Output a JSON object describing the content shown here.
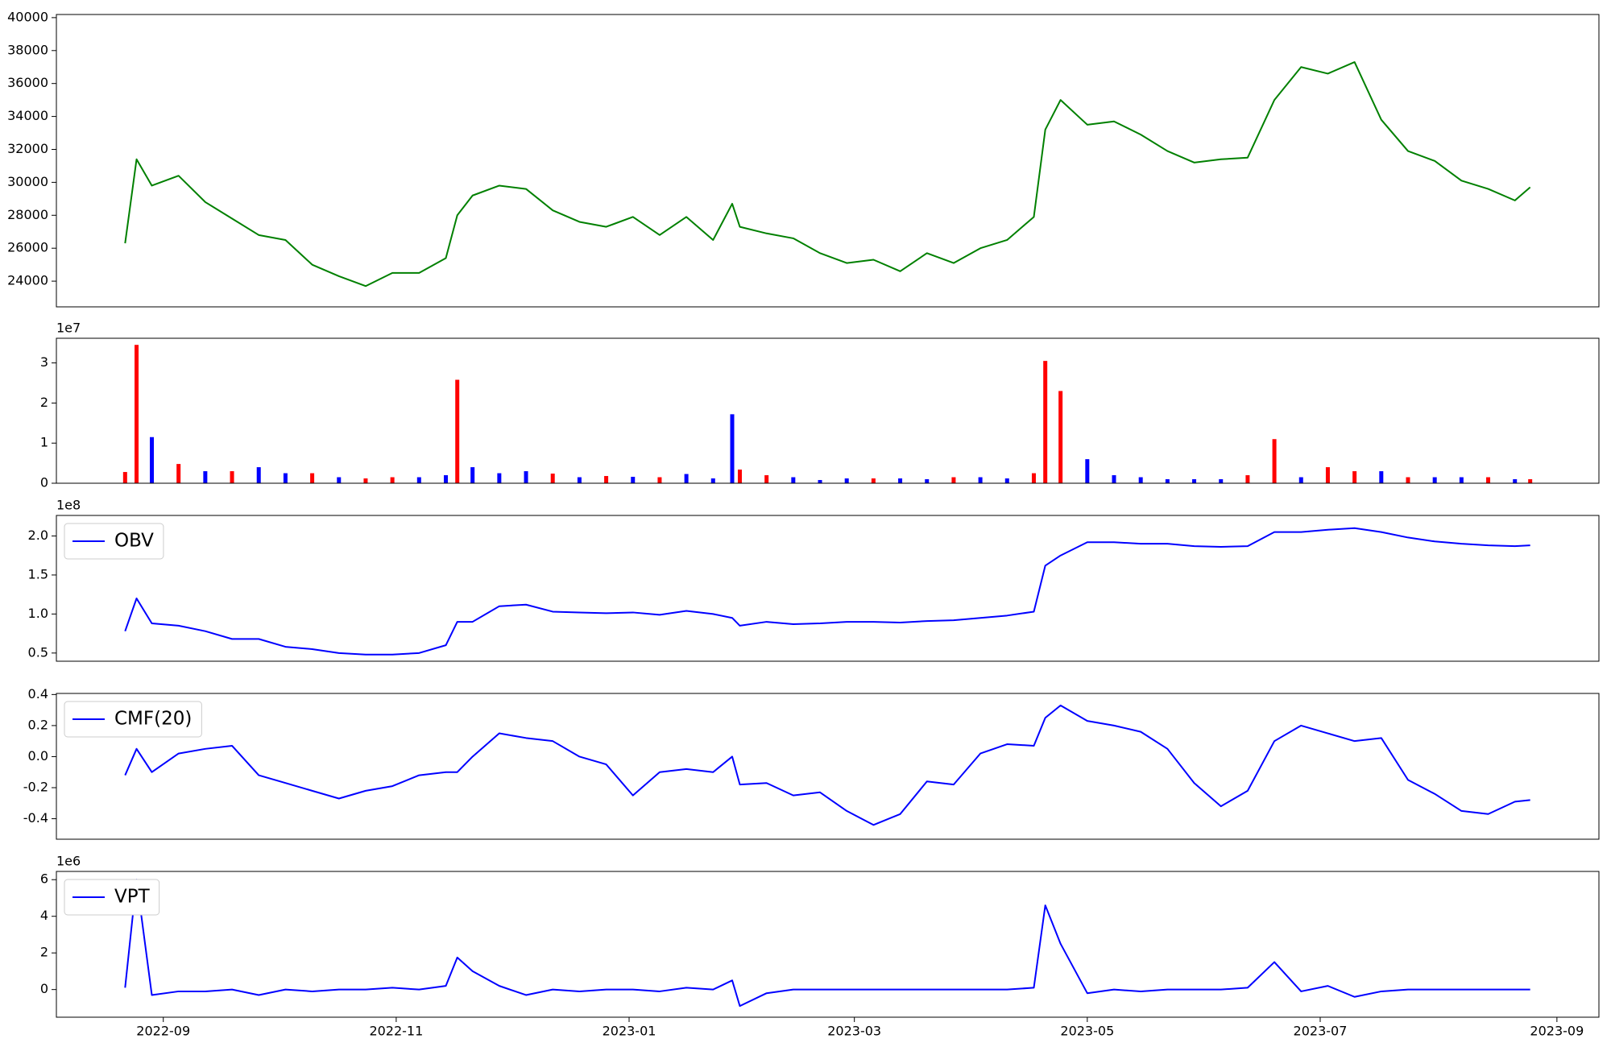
{
  "chart_data": [
    {
      "type": "line",
      "x": [
        "2022-08-22",
        "2022-08-25",
        "2022-08-29",
        "2022-09-05",
        "2022-09-12",
        "2022-09-19",
        "2022-09-26",
        "2022-10-03",
        "2022-10-10",
        "2022-10-17",
        "2022-10-24",
        "2022-10-31",
        "2022-11-07",
        "2022-11-14",
        "2022-11-17",
        "2022-11-21",
        "2022-11-28",
        "2022-12-05",
        "2022-12-12",
        "2022-12-19",
        "2022-12-26",
        "2023-01-02",
        "2023-01-09",
        "2023-01-16",
        "2023-01-23",
        "2023-01-28",
        "2023-01-30",
        "2023-02-06",
        "2023-02-13",
        "2023-02-20",
        "2023-02-27",
        "2023-03-06",
        "2023-03-13",
        "2023-03-20",
        "2023-03-27",
        "2023-04-03",
        "2023-04-10",
        "2023-04-17",
        "2023-04-20",
        "2023-04-24",
        "2023-05-01",
        "2023-05-08",
        "2023-05-15",
        "2023-05-22",
        "2023-05-29",
        "2023-06-05",
        "2023-06-12",
        "2023-06-19",
        "2023-06-26",
        "2023-07-03",
        "2023-07-10",
        "2023-07-17",
        "2023-07-24",
        "2023-07-31",
        "2023-08-07",
        "2023-08-14",
        "2023-08-21",
        "2023-08-25"
      ],
      "values": [
        26300,
        31400,
        29800,
        30400,
        28800,
        27800,
        26800,
        26500,
        25000,
        24300,
        23700,
        24500,
        24500,
        25400,
        28000,
        29200,
        29800,
        29600,
        28300,
        27600,
        27300,
        27900,
        26800,
        27900,
        26500,
        28700,
        27300,
        26900,
        26600,
        25700,
        25100,
        25300,
        24600,
        25700,
        25100,
        26000,
        26500,
        27900,
        33200,
        35000,
        33500,
        33700,
        32900,
        31900,
        31200,
        31400,
        31500,
        35000,
        37000,
        36600,
        37300,
        33800,
        31900,
        31300,
        30100,
        29600,
        28900,
        29700
      ],
      "color": "#008000",
      "xlim": [
        "2022-08-04",
        "2023-09-12"
      ],
      "ylim": [
        22440,
        40190
      ],
      "yticks": [
        24000,
        26000,
        28000,
        30000,
        32000,
        34000,
        36000,
        38000,
        40000
      ]
    },
    {
      "type": "bar",
      "x": [
        "2022-08-22",
        "2022-08-25",
        "2022-08-29",
        "2022-09-05",
        "2022-09-12",
        "2022-09-19",
        "2022-09-26",
        "2022-10-03",
        "2022-10-10",
        "2022-10-17",
        "2022-10-24",
        "2022-10-31",
        "2022-11-07",
        "2022-11-14",
        "2022-11-17",
        "2022-11-21",
        "2022-11-28",
        "2022-12-05",
        "2022-12-12",
        "2022-12-19",
        "2022-12-26",
        "2023-01-02",
        "2023-01-09",
        "2023-01-16",
        "2023-01-23",
        "2023-01-28",
        "2023-01-30",
        "2023-02-06",
        "2023-02-13",
        "2023-02-20",
        "2023-02-27",
        "2023-03-06",
        "2023-03-13",
        "2023-03-20",
        "2023-03-27",
        "2023-04-03",
        "2023-04-10",
        "2023-04-17",
        "2023-04-20",
        "2023-04-24",
        "2023-05-01",
        "2023-05-08",
        "2023-05-15",
        "2023-05-22",
        "2023-05-29",
        "2023-06-05",
        "2023-06-12",
        "2023-06-19",
        "2023-06-26",
        "2023-07-03",
        "2023-07-10",
        "2023-07-17",
        "2023-07-24",
        "2023-07-31",
        "2023-08-07",
        "2023-08-14",
        "2023-08-21",
        "2023-08-25"
      ],
      "values": [
        2800000,
        34500000,
        11500000,
        4800000,
        3000000,
        3000000,
        4000000,
        2500000,
        2500000,
        1500000,
        1200000,
        1500000,
        1500000,
        2000000,
        25800000,
        4000000,
        2500000,
        3000000,
        2400000,
        1500000,
        1800000,
        1600000,
        1500000,
        2300000,
        1200000,
        17200000,
        3400000,
        2000000,
        1500000,
        800000,
        1200000,
        1200000,
        1200000,
        1000000,
        1500000,
        1500000,
        1200000,
        2500000,
        30500000,
        23000000,
        6000000,
        2000000,
        1500000,
        1000000,
        1000000,
        1000000,
        2000000,
        11000000,
        1500000,
        4000000,
        3000000,
        3000000,
        1500000,
        1500000,
        1500000,
        1500000,
        1000000,
        1000000
      ],
      "colors": [
        "red",
        "red",
        "blue",
        "red",
        "blue",
        "red",
        "blue",
        "blue",
        "red",
        "blue",
        "red",
        "red",
        "blue",
        "blue",
        "red",
        "blue",
        "blue",
        "blue",
        "red",
        "blue",
        "red",
        "blue",
        "red",
        "blue",
        "blue",
        "blue",
        "red",
        "red",
        "blue",
        "blue",
        "blue",
        "red",
        "blue",
        "blue",
        "red",
        "blue",
        "blue",
        "red",
        "red",
        "red",
        "blue",
        "blue",
        "blue",
        "blue",
        "blue",
        "blue",
        "red",
        "red",
        "blue",
        "red",
        "red",
        "blue",
        "red",
        "blue",
        "blue",
        "red",
        "blue",
        "red"
      ],
      "xlim": [
        "2022-08-04",
        "2023-09-12"
      ],
      "ylim": [
        0,
        36150000
      ],
      "yticks": [
        0,
        {
          "value": 10000000,
          "label": "1"
        },
        {
          "value": 20000000,
          "label": "2"
        },
        {
          "value": 30000000,
          "label": "3"
        }
      ],
      "offset_label": "1e7"
    },
    {
      "type": "line",
      "x": [
        "2022-08-22",
        "2022-08-25",
        "2022-08-29",
        "2022-09-05",
        "2022-09-12",
        "2022-09-19",
        "2022-09-26",
        "2022-10-03",
        "2022-10-10",
        "2022-10-17",
        "2022-10-24",
        "2022-10-31",
        "2022-11-07",
        "2022-11-14",
        "2022-11-17",
        "2022-11-21",
        "2022-11-28",
        "2022-12-05",
        "2022-12-12",
        "2022-12-19",
        "2022-12-26",
        "2023-01-02",
        "2023-01-09",
        "2023-01-16",
        "2023-01-23",
        "2023-01-28",
        "2023-01-30",
        "2023-02-06",
        "2023-02-13",
        "2023-02-20",
        "2023-02-27",
        "2023-03-06",
        "2023-03-13",
        "2023-03-20",
        "2023-03-27",
        "2023-04-03",
        "2023-04-10",
        "2023-04-17",
        "2023-04-20",
        "2023-04-24",
        "2023-05-01",
        "2023-05-08",
        "2023-05-15",
        "2023-05-22",
        "2023-05-29",
        "2023-06-05",
        "2023-06-12",
        "2023-06-19",
        "2023-06-26",
        "2023-07-03",
        "2023-07-10",
        "2023-07-17",
        "2023-07-24",
        "2023-07-31",
        "2023-08-07",
        "2023-08-14",
        "2023-08-21",
        "2023-08-25"
      ],
      "series": [
        {
          "name": "OBV",
          "color": "#0000ff",
          "values": [
            78000000,
            120000000,
            88000000,
            85000000,
            78000000,
            68000000,
            68000000,
            58000000,
            55000000,
            50000000,
            48000000,
            48000000,
            50000000,
            60000000,
            90000000,
            90000000,
            110000000,
            112000000,
            103000000,
            102000000,
            101000000,
            102000000,
            99000000,
            104000000,
            100000000,
            95000000,
            85000000,
            90000000,
            87000000,
            88000000,
            90000000,
            90000000,
            89000000,
            91000000,
            92000000,
            95000000,
            98000000,
            103000000,
            162000000,
            175000000,
            192000000,
            192000000,
            190000000,
            190000000,
            187000000,
            186000000,
            187000000,
            205000000,
            205000000,
            208000000,
            210000000,
            205000000,
            198000000,
            193000000,
            190000000,
            188000000,
            187000000,
            188000000
          ]
        }
      ],
      "legend": "upper left",
      "xlim": [
        "2022-08-04",
        "2023-09-12"
      ],
      "ylim": [
        39500000,
        226300000
      ],
      "yticks": [
        {
          "value": 50000000,
          "label": "0.5"
        },
        {
          "value": 100000000,
          "label": "1.0"
        },
        {
          "value": 150000000,
          "label": "1.5"
        },
        {
          "value": 200000000,
          "label": "2.0"
        }
      ],
      "offset_label": "1e8"
    },
    {
      "type": "line",
      "x": [
        "2022-08-22",
        "2022-08-25",
        "2022-08-29",
        "2022-09-05",
        "2022-09-12",
        "2022-09-19",
        "2022-09-26",
        "2022-10-03",
        "2022-10-10",
        "2022-10-17",
        "2022-10-24",
        "2022-10-31",
        "2022-11-07",
        "2022-11-14",
        "2022-11-17",
        "2022-11-21",
        "2022-11-28",
        "2022-12-05",
        "2022-12-12",
        "2022-12-19",
        "2022-12-26",
        "2023-01-02",
        "2023-01-09",
        "2023-01-16",
        "2023-01-23",
        "2023-01-28",
        "2023-01-30",
        "2023-02-06",
        "2023-02-13",
        "2023-02-20",
        "2023-02-27",
        "2023-03-06",
        "2023-03-13",
        "2023-03-20",
        "2023-03-27",
        "2023-04-03",
        "2023-04-10",
        "2023-04-17",
        "2023-04-20",
        "2023-04-24",
        "2023-05-01",
        "2023-05-08",
        "2023-05-15",
        "2023-05-22",
        "2023-05-29",
        "2023-06-05",
        "2023-06-12",
        "2023-06-19",
        "2023-06-26",
        "2023-07-03",
        "2023-07-10",
        "2023-07-17",
        "2023-07-24",
        "2023-07-31",
        "2023-08-07",
        "2023-08-14",
        "2023-08-21",
        "2023-08-25"
      ],
      "series": [
        {
          "name": "CMF(20)",
          "color": "#0000ff",
          "values": [
            -0.12,
            0.05,
            -0.1,
            0.02,
            0.05,
            0.07,
            -0.12,
            -0.17,
            -0.22,
            -0.27,
            -0.22,
            -0.19,
            -0.12,
            -0.1,
            -0.1,
            0.0,
            0.15,
            0.12,
            0.1,
            0.0,
            -0.05,
            -0.25,
            -0.1,
            -0.08,
            -0.1,
            0.0,
            -0.18,
            -0.17,
            -0.25,
            -0.23,
            -0.35,
            -0.44,
            -0.37,
            -0.16,
            -0.18,
            0.02,
            0.08,
            0.07,
            0.25,
            0.33,
            0.23,
            0.2,
            0.16,
            0.05,
            -0.17,
            -0.32,
            -0.22,
            0.1,
            0.2,
            0.15,
            0.1,
            0.12,
            -0.15,
            -0.24,
            -0.35,
            -0.37,
            -0.29,
            -0.28
          ]
        }
      ],
      "legend": "upper left",
      "xlim": [
        "2022-08-04",
        "2023-09-12"
      ],
      "ylim": [
        -0.532,
        0.407
      ],
      "yticks": [
        -0.4,
        -0.2,
        {
          "value": 0,
          "label": "0.0"
        },
        0.2,
        0.4
      ]
    },
    {
      "type": "line",
      "x": [
        "2022-08-22",
        "2022-08-25",
        "2022-08-29",
        "2022-09-05",
        "2022-09-12",
        "2022-09-19",
        "2022-09-26",
        "2022-10-03",
        "2022-10-10",
        "2022-10-17",
        "2022-10-24",
        "2022-10-31",
        "2022-11-07",
        "2022-11-14",
        "2022-11-17",
        "2022-11-21",
        "2022-11-28",
        "2022-12-05",
        "2022-12-12",
        "2022-12-19",
        "2022-12-26",
        "2023-01-02",
        "2023-01-09",
        "2023-01-16",
        "2023-01-23",
        "2023-01-28",
        "2023-01-30",
        "2023-02-06",
        "2023-02-13",
        "2023-02-20",
        "2023-02-27",
        "2023-03-06",
        "2023-03-13",
        "2023-03-20",
        "2023-03-27",
        "2023-04-03",
        "2023-04-10",
        "2023-04-17",
        "2023-04-20",
        "2023-04-24",
        "2023-05-01",
        "2023-05-08",
        "2023-05-15",
        "2023-05-22",
        "2023-05-29",
        "2023-06-05",
        "2023-06-12",
        "2023-06-19",
        "2023-06-26",
        "2023-07-03",
        "2023-07-10",
        "2023-07-17",
        "2023-07-24",
        "2023-07-31",
        "2023-08-07",
        "2023-08-14",
        "2023-08-21",
        "2023-08-25"
      ],
      "series": [
        {
          "name": "VPT",
          "color": "#0000ff",
          "values": [
            100000,
            6000000,
            -300000,
            -100000,
            -100000,
            0,
            -300000,
            0,
            -100000,
            0,
            0,
            100000,
            0,
            200000,
            1750000,
            1000000,
            200000,
            -300000,
            0,
            -100000,
            0,
            0,
            -100000,
            100000,
            0,
            500000,
            -900000,
            -200000,
            0,
            0,
            0,
            0,
            0,
            0,
            0,
            0,
            0,
            100000,
            4600000,
            2500000,
            -200000,
            0,
            -100000,
            0,
            0,
            0,
            100000,
            1500000,
            -100000,
            200000,
            -400000,
            -100000,
            0,
            0,
            0,
            0,
            0,
            0
          ]
        }
      ],
      "legend": "upper left",
      "xlim": [
        "2022-08-04",
        "2023-09-12"
      ],
      "ylim": [
        -1510000,
        6450000
      ],
      "yticks": [
        0,
        {
          "value": 2000000,
          "label": "2"
        },
        {
          "value": 4000000,
          "label": "4"
        },
        {
          "value": 6000000,
          "label": "6"
        }
      ],
      "offset_label": "1e6",
      "xticks": [
        {
          "value": "2022-09-01",
          "label": "2022-09"
        },
        {
          "value": "2022-11-01",
          "label": "2022-11"
        },
        {
          "value": "2023-01-01",
          "label": "2023-01"
        },
        {
          "value": "2023-03-01",
          "label": "2023-03"
        },
        {
          "value": "2023-05-01",
          "label": "2023-05"
        },
        {
          "value": "2023-07-01",
          "label": "2023-07"
        },
        {
          "value": "2023-09-01",
          "label": "2023-09"
        }
      ]
    }
  ]
}
